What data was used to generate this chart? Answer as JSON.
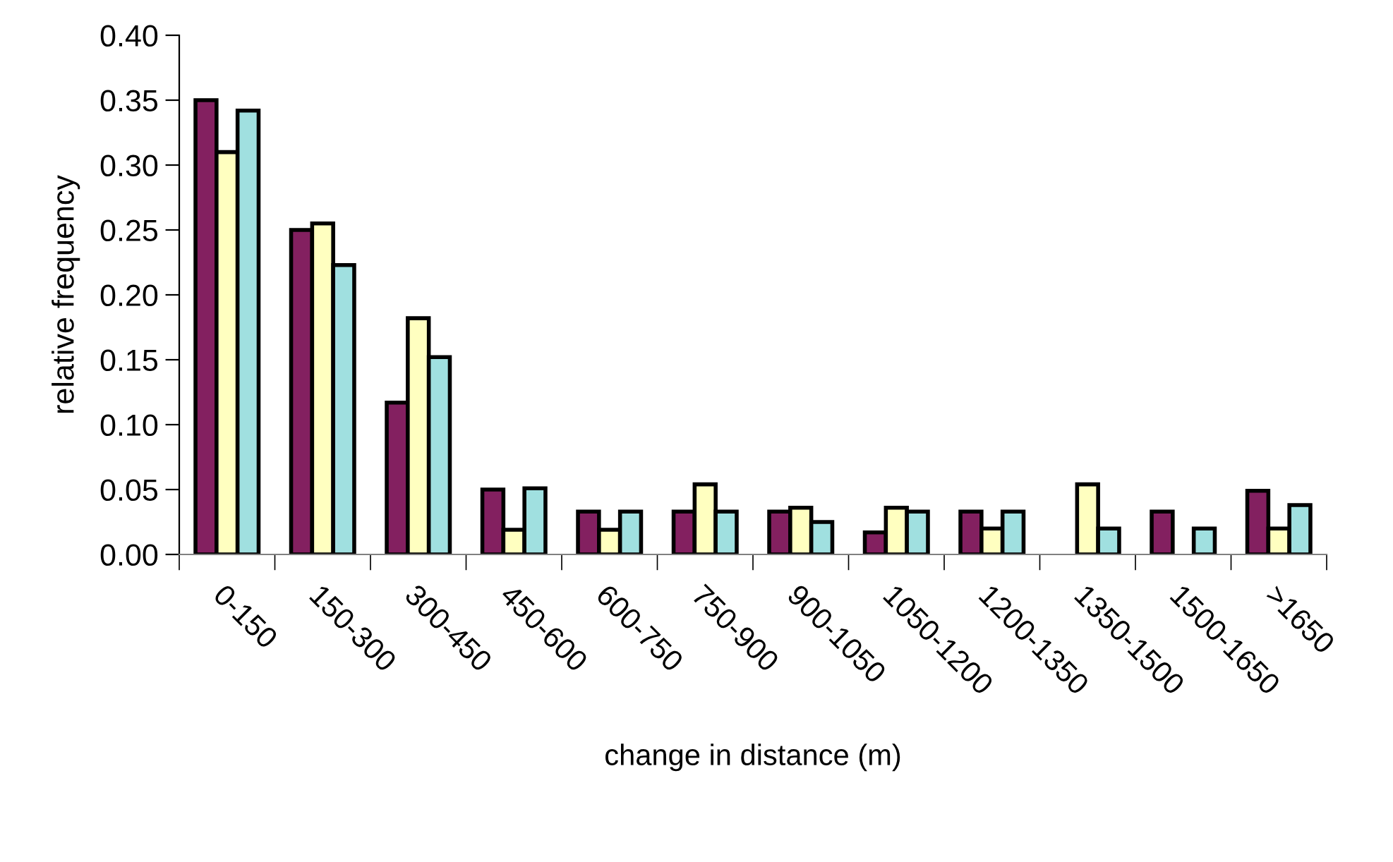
{
  "chart_data": {
    "type": "bar",
    "xlabel": "change in distance (m)",
    "ylabel": "relative frequency",
    "categories": [
      "0-150",
      "150-300",
      "300-450",
      "450-600",
      "600-750",
      "750-900",
      "900-1050",
      "1050-1200",
      "1200-1350",
      "1350-1500",
      "1500-1650",
      ">1650"
    ],
    "series": [
      {
        "color": "#832060",
        "values": [
          0.35,
          0.25,
          0.117,
          0.05,
          0.033,
          0.033,
          0.033,
          0.017,
          0.033,
          0,
          0.033,
          0.049
        ]
      },
      {
        "color": "#ffffc0",
        "values": [
          0.31,
          0.255,
          0.182,
          0.019,
          0.019,
          0.054,
          0.036,
          0.036,
          0.02,
          0.054,
          0,
          0.02
        ]
      },
      {
        "color": "#a0e0e0",
        "values": [
          0.342,
          0.223,
          0.152,
          0.051,
          0.033,
          0.033,
          0.025,
          0.033,
          0.033,
          0.02,
          0.02,
          0.038
        ]
      }
    ],
    "ylim": [
      0,
      0.4
    ],
    "yticks": [
      {
        "value": 0,
        "label": "0.00"
      },
      {
        "value": 0.05,
        "label": "0.05"
      },
      {
        "value": 0.1,
        "label": "0.10"
      },
      {
        "value": 0.15,
        "label": "0.15"
      },
      {
        "value": 0.2,
        "label": "0.20"
      },
      {
        "value": 0.25,
        "label": "0.25"
      },
      {
        "value": 0.3,
        "label": "0.30"
      },
      {
        "value": 0.35,
        "label": "0.35"
      },
      {
        "value": 0.4,
        "label": "0.40"
      }
    ],
    "grid": false
  }
}
